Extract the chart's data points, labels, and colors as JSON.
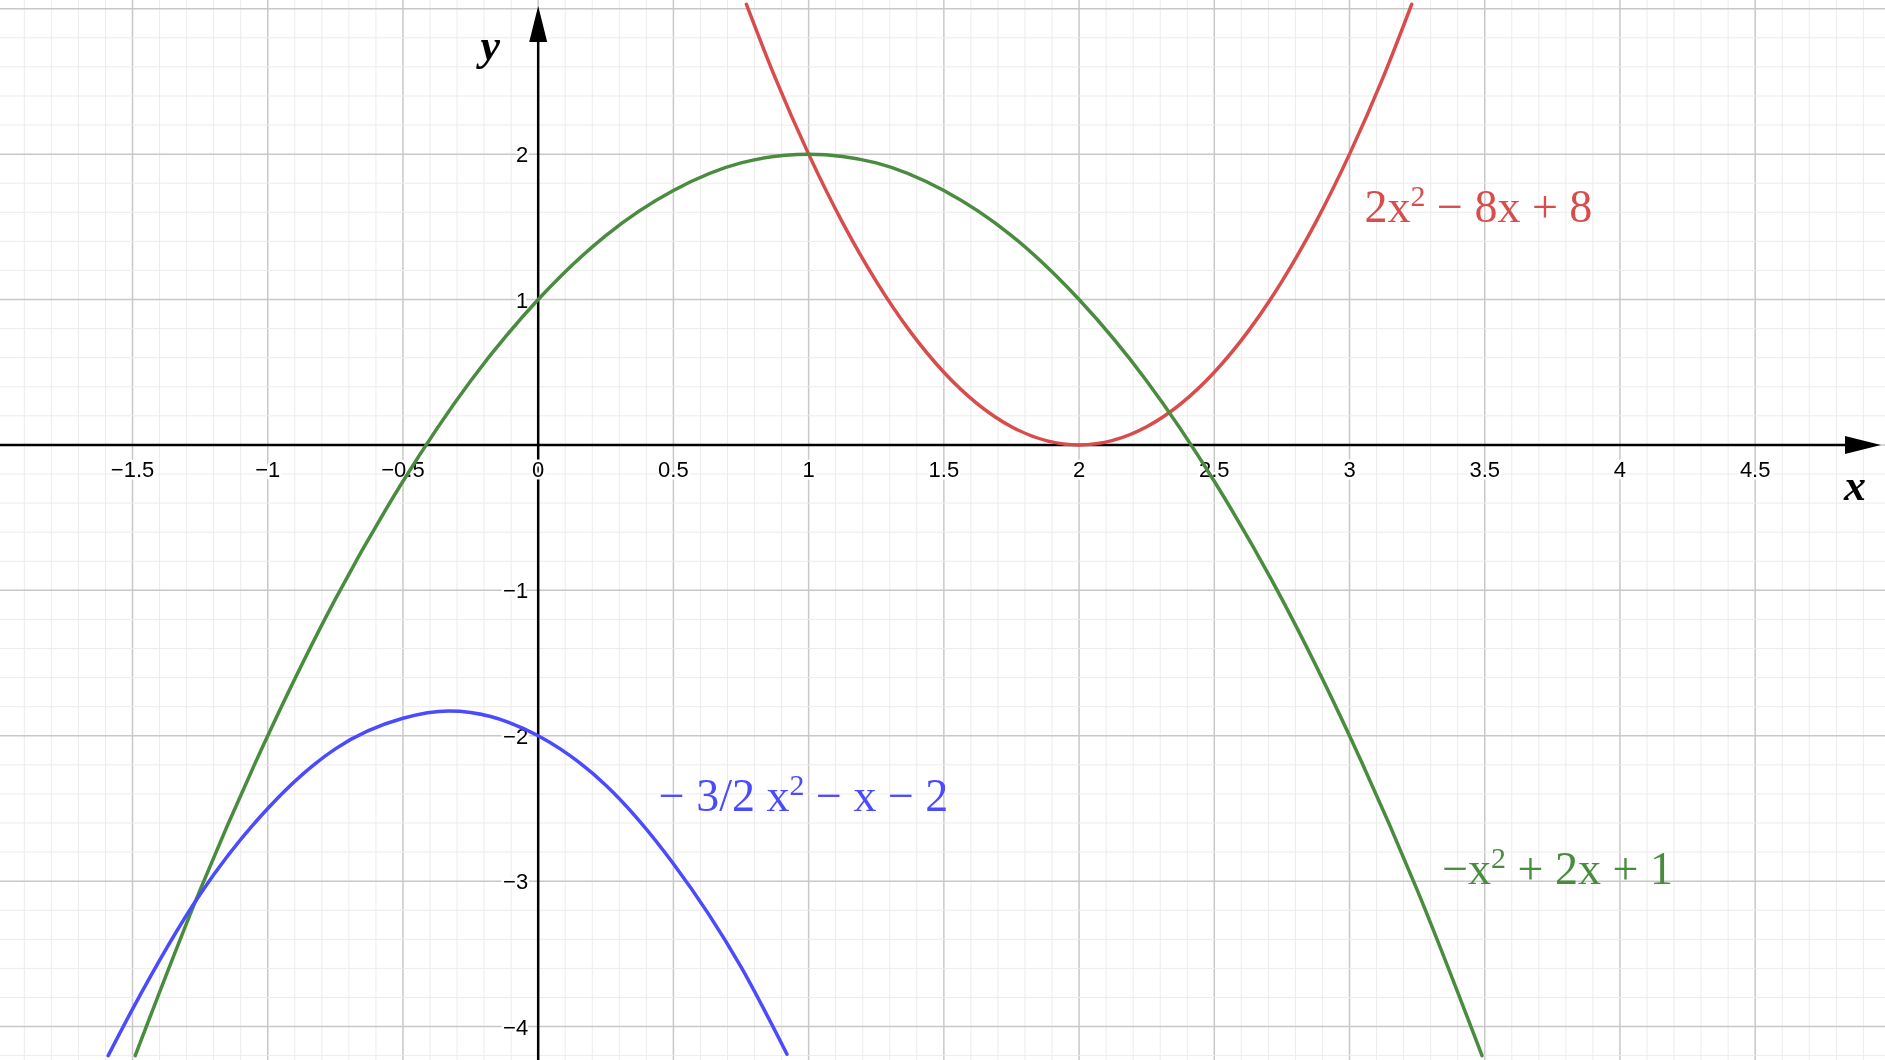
{
  "chart_data": {
    "type": "line",
    "xlabel": "x",
    "ylabel": "y",
    "xlim": [
      -1.99,
      4.98
    ],
    "ylim": [
      -4.23,
      3.06
    ],
    "xticks": [
      {
        "value": -1.5,
        "label": "−1.5"
      },
      {
        "value": -1,
        "label": "−1"
      },
      {
        "value": -0.5,
        "label": "−0.5"
      },
      0,
      0.5,
      1,
      1.5,
      2,
      2.5,
      3,
      3.5,
      4,
      4.5
    ],
    "yticks": [
      {
        "value": -4,
        "label": "−4"
      },
      {
        "value": -3,
        "label": "−3"
      },
      {
        "value": -2,
        "label": "−2"
      },
      {
        "value": -1,
        "label": "−1"
      },
      1,
      2
    ],
    "grid": true,
    "marker": "none",
    "line_style": "solid",
    "series": [
      {
        "name": "2x$^{2}$ − 8x + 8",
        "color": "#d94c4c",
        "x": [
          0.77,
          0.875,
          1,
          1.125,
          1.25,
          1.375,
          1.5,
          1.75,
          2,
          2.25,
          2.5,
          2.625,
          2.75,
          2.875,
          3,
          3.125,
          3.23
        ],
        "values": [
          3.03,
          2.531,
          2,
          1.531,
          1.125,
          0.781,
          0.5,
          0.125,
          0,
          0.125,
          0.5,
          0.781,
          1.125,
          1.531,
          2,
          2.531,
          3.03
        ]
      },
      {
        "name": "−x$^{2}$ + 2x + 1",
        "color": "#4a8c3f",
        "x": [
          -1.49,
          -1.25,
          -1,
          -0.75,
          -0.5,
          -0.25,
          0,
          0.25,
          0.5,
          0.75,
          1,
          1.25,
          1.5,
          1.75,
          2,
          2.25,
          2.5,
          2.75,
          3,
          3.25,
          3.49
        ],
        "values": [
          -4.2,
          -3.06,
          -2,
          -1.06,
          -0.25,
          0.44,
          1,
          1.44,
          1.75,
          1.94,
          2,
          1.94,
          1.75,
          1.44,
          1,
          0.44,
          -0.25,
          -1.06,
          -2,
          -3.06,
          -4.2
        ]
      },
      {
        "name": "− 3/2 x$^{2}$ − x − 2",
        "color": "#4a4aff",
        "x": [
          -1.59,
          -1.5,
          -1.25,
          -1,
          -0.75,
          -0.5,
          -0.33,
          -0.25,
          0,
          0.25,
          0.5,
          0.75,
          0.92
        ],
        "values": [
          -4.2,
          -3.88,
          -3.09,
          -2.5,
          -2.09,
          -1.88,
          -1.83,
          -1.84,
          -2,
          -2.34,
          -2.88,
          -3.59,
          -4.19
        ]
      }
    ]
  }
}
